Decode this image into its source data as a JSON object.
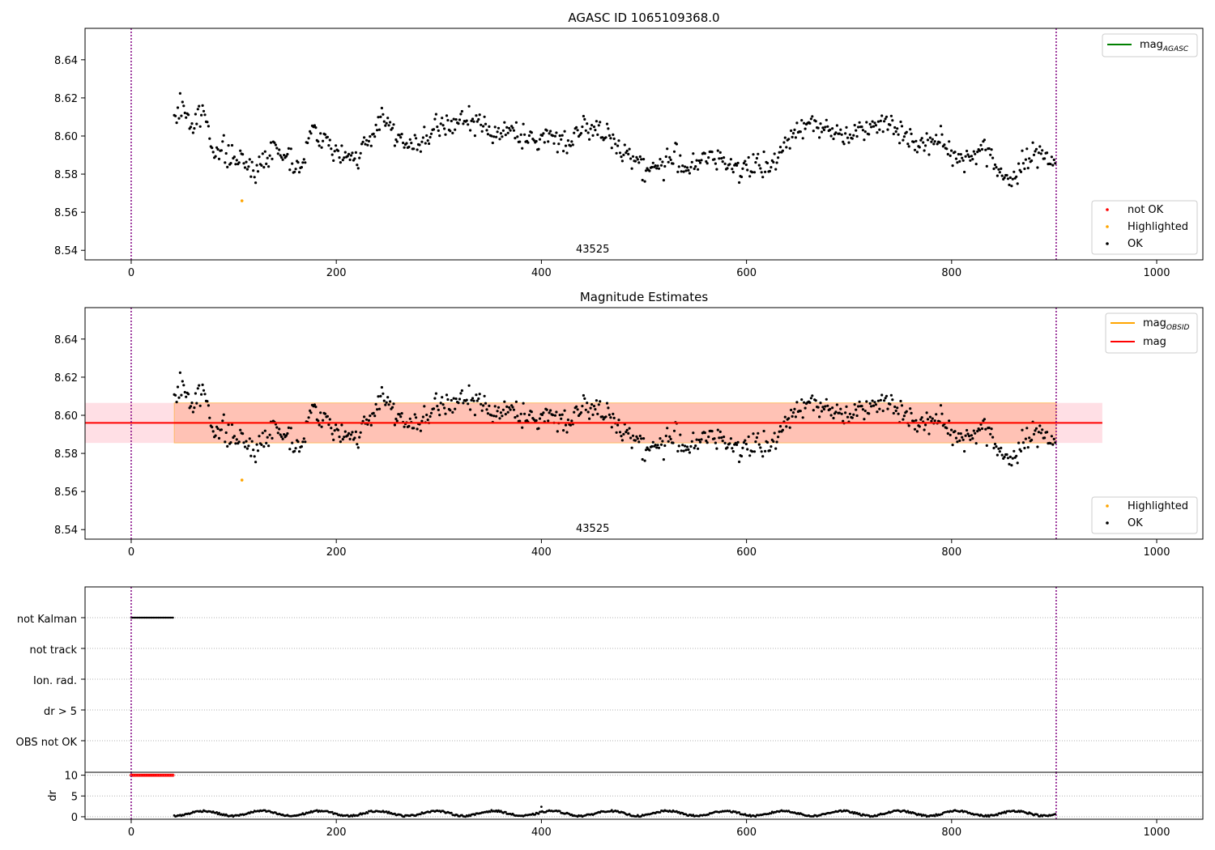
{
  "colors": {
    "ok": "#000000",
    "not_ok": "#ff0000",
    "highlighted": "#ffa500",
    "agasc_line": "#008000",
    "obsid_line": "#ffa500",
    "mag_line": "#ff0000",
    "outer_band": "#ffc0cb",
    "inner_band": "#ffa07a",
    "bound_line": "#800080",
    "grid": "#b0b0b0"
  },
  "chart_data": [
    {
      "id": "agasc",
      "type": "scatter",
      "title": "AGASC ID 1065109368.0",
      "xlim": [
        -45,
        1045
      ],
      "ylim": [
        8.535,
        8.6565
      ],
      "xticks": [
        0,
        200,
        400,
        600,
        800,
        1000
      ],
      "yticks": [
        8.54,
        8.56,
        8.58,
        8.6,
        8.62,
        8.64
      ],
      "x_start": 42,
      "x_end": 902,
      "vlines": [
        0,
        902
      ],
      "obsid_label": "43525",
      "obsid_label_x": 450,
      "highlighted": [
        [
          108,
          8.566
        ]
      ],
      "legend_lines": [
        {
          "name": "mag",
          "sub": "AGASC",
          "color_key": "agasc_line"
        }
      ],
      "legend_points": [
        {
          "name": "not OK",
          "color_key": "not_ok"
        },
        {
          "name": "Highlighted",
          "color_key": "highlighted"
        },
        {
          "name": "OK",
          "color_key": "ok"
        }
      ],
      "trend": [
        [
          42,
          8.608
        ],
        [
          50,
          8.617
        ],
        [
          60,
          8.604
        ],
        [
          70,
          8.614
        ],
        [
          80,
          8.594
        ],
        [
          100,
          8.588
        ],
        [
          110,
          8.586
        ],
        [
          125,
          8.583
        ],
        [
          140,
          8.595
        ],
        [
          155,
          8.588
        ],
        [
          165,
          8.584
        ],
        [
          175,
          8.602
        ],
        [
          190,
          8.598
        ],
        [
          205,
          8.588
        ],
        [
          215,
          8.589
        ],
        [
          230,
          8.594
        ],
        [
          245,
          8.612
        ],
        [
          258,
          8.602
        ],
        [
          270,
          8.593
        ],
        [
          285,
          8.597
        ],
        [
          300,
          8.604
        ],
        [
          315,
          8.607
        ],
        [
          330,
          8.608
        ],
        [
          345,
          8.605
        ],
        [
          360,
          8.601
        ],
        [
          375,
          8.603
        ],
        [
          390,
          8.596
        ],
        [
          410,
          8.601
        ],
        [
          425,
          8.596
        ],
        [
          440,
          8.606
        ],
        [
          455,
          8.602
        ],
        [
          470,
          8.597
        ],
        [
          485,
          8.591
        ],
        [
          500,
          8.583
        ],
        [
          515,
          8.584
        ],
        [
          530,
          8.589
        ],
        [
          545,
          8.583
        ],
        [
          560,
          8.588
        ],
        [
          575,
          8.588
        ],
        [
          590,
          8.584
        ],
        [
          605,
          8.584
        ],
        [
          620,
          8.583
        ],
        [
          635,
          8.592
        ],
        [
          650,
          8.605
        ],
        [
          665,
          8.608
        ],
        [
          680,
          8.602
        ],
        [
          695,
          8.601
        ],
        [
          710,
          8.603
        ],
        [
          725,
          8.608
        ],
        [
          740,
          8.606
        ],
        [
          755,
          8.601
        ],
        [
          770,
          8.594
        ],
        [
          785,
          8.599
        ],
        [
          800,
          8.591
        ],
        [
          815,
          8.588
        ],
        [
          830,
          8.595
        ],
        [
          845,
          8.582
        ],
        [
          860,
          8.577
        ],
        [
          875,
          8.588
        ],
        [
          890,
          8.592
        ],
        [
          902,
          8.585
        ]
      ]
    },
    {
      "id": "estimates",
      "type": "scatter",
      "title": "Magnitude Estimates",
      "xlim": [
        -45,
        1045
      ],
      "ylim": [
        8.535,
        8.6565
      ],
      "xticks": [
        0,
        200,
        400,
        600,
        800,
        1000
      ],
      "yticks": [
        8.54,
        8.56,
        8.58,
        8.6,
        8.62,
        8.64
      ],
      "vlines": [
        0,
        902
      ],
      "obsid_label": "43525",
      "obsid_label_x": 450,
      "mag": 8.596,
      "outer_band": [
        8.5855,
        8.6065
      ],
      "outer_band_x": [
        -45,
        947
      ],
      "inner_band": [
        8.5855,
        8.6065
      ],
      "inner_band_x": [
        42,
        902
      ],
      "legend_lines": [
        {
          "name": "mag",
          "sub": "OBSID",
          "color_key": "obsid_line"
        },
        {
          "name": "mag",
          "sub": "",
          "color_key": "mag_line"
        }
      ],
      "legend_points": [
        {
          "name": "Highlighted",
          "color_key": "highlighted"
        },
        {
          "name": "OK",
          "color_key": "ok"
        }
      ]
    },
    {
      "id": "flags",
      "type": "scatter",
      "categories": [
        "not Kalman",
        "not track",
        "Ion. rad.",
        "dr > 5",
        "OBS not OK"
      ],
      "not_kalman_x": [
        0,
        42
      ],
      "xlim": [
        -45,
        1045
      ]
    },
    {
      "id": "dr",
      "type": "scatter",
      "ylabel": "dr",
      "ylim": [
        -0.6,
        10.7
      ],
      "yticks": [
        0,
        5,
        10
      ],
      "xticks": [
        0,
        200,
        400,
        600,
        800,
        1000
      ],
      "xlim": [
        -45,
        1045
      ],
      "dr_capped": [
        [
          0,
          42,
          10
        ]
      ],
      "dr_x_start": 42,
      "dr_x_end": 902,
      "spike": [
        [
          400,
          2.4
        ]
      ]
    }
  ]
}
